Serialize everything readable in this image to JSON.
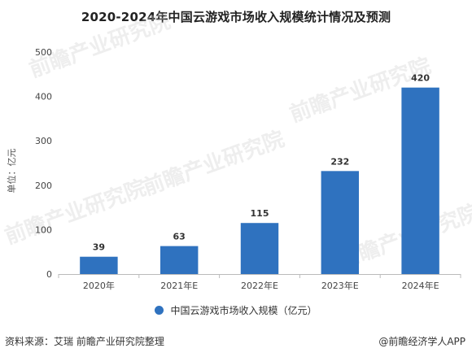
{
  "title": "2020-2024年中国云游戏市场收入规模统计情况及预测",
  "chart_data": {
    "type": "bar",
    "categories": [
      "2020年",
      "2021年E",
      "2022年E",
      "2023年E",
      "2024年E"
    ],
    "series": [
      {
        "name": "中国云游戏市场收入规模（亿元）",
        "values": [
          39,
          63,
          115,
          232,
          420
        ]
      }
    ],
    "data_labels": [
      "39",
      "63",
      "115",
      "232",
      "420"
    ],
    "ylabel": "单位：亿元",
    "ylim": [
      0,
      500
    ],
    "yticks": [
      "0",
      "100",
      "200",
      "300",
      "400",
      "500"
    ],
    "bar_color": "#2f72bf",
    "grid": false,
    "legend_position": "bottom"
  },
  "legend": {
    "label": "中国云游戏市场收入规模（亿元）"
  },
  "footer": {
    "source": "资料来源：艾瑞 前瞻产业研究院整理",
    "brand": "@前瞻经济学人APP"
  },
  "watermark": {
    "text": "前瞻产业研究院"
  }
}
